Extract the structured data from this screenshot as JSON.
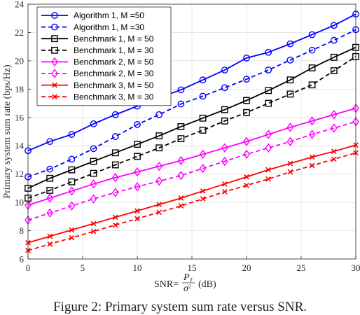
{
  "chart_data": {
    "type": "line",
    "xlabel": "SNR= P_T / σ² (dB)",
    "xlabel_parts": {
      "prefix": "SNR=",
      "numerator": "P",
      "numerator_sub": "T",
      "denominator": "σ",
      "denominator_sup": "2",
      "suffix": "(dB)"
    },
    "ylabel": "Primary system sum rate (bps/Hz)",
    "xlim": [
      0,
      30
    ],
    "ylim": [
      6,
      24
    ],
    "xticks": [
      0,
      5,
      10,
      15,
      20,
      25,
      30
    ],
    "yticks": [
      6,
      8,
      10,
      12,
      14,
      16,
      18,
      20,
      22,
      24
    ],
    "grid": true,
    "legend_position": "top-left",
    "x": [
      0,
      2,
      4,
      6,
      8,
      10,
      12,
      14,
      16,
      18,
      20,
      22,
      24,
      26,
      28,
      30
    ],
    "series": [
      {
        "name": "Algorithm 1, M =50",
        "color": "#0000ff",
        "dash": "solid",
        "marker": "circle",
        "values": [
          13.65,
          14.3,
          14.8,
          15.55,
          16.2,
          16.8,
          17.4,
          17.95,
          18.65,
          19.35,
          20.2,
          20.6,
          21.2,
          21.85,
          22.5,
          23.3
        ]
      },
      {
        "name": "Algorithm 1, M =30",
        "color": "#0000ff",
        "dash": "dashed",
        "marker": "circle",
        "values": [
          11.8,
          12.35,
          13.05,
          13.8,
          14.65,
          15.5,
          16.2,
          16.95,
          17.5,
          18.1,
          18.7,
          19.35,
          20.05,
          20.75,
          21.45,
          22.2
        ]
      },
      {
        "name": "Benchmark 1, M = 50",
        "color": "#000000",
        "dash": "solid",
        "marker": "square",
        "values": [
          11.0,
          11.7,
          12.3,
          12.9,
          13.5,
          14.1,
          14.7,
          15.35,
          15.95,
          16.55,
          17.2,
          17.9,
          18.65,
          19.5,
          20.25,
          20.95
        ]
      },
      {
        "name": "Benchmark 1, M = 30",
        "color": "#000000",
        "dash": "dashed",
        "marker": "square",
        "values": [
          10.3,
          10.85,
          11.45,
          12.05,
          12.65,
          13.25,
          13.85,
          14.5,
          15.1,
          15.75,
          16.35,
          17.0,
          17.65,
          18.3,
          19.3,
          20.3
        ]
      },
      {
        "name": "Benchmark 2, M = 50",
        "color": "#ff00ff",
        "dash": "solid",
        "marker": "diamond",
        "values": [
          9.8,
          10.3,
          10.8,
          11.3,
          11.75,
          12.15,
          12.55,
          12.95,
          13.4,
          13.85,
          14.3,
          14.8,
          15.3,
          15.75,
          16.2,
          16.65
        ]
      },
      {
        "name": "Benchmark 2, M = 30",
        "color": "#ff00ff",
        "dash": "dashed",
        "marker": "diamond",
        "values": [
          8.75,
          9.25,
          9.75,
          10.25,
          10.7,
          11.1,
          11.5,
          11.9,
          12.4,
          12.9,
          13.4,
          13.85,
          14.3,
          14.8,
          15.25,
          15.7
        ]
      },
      {
        "name": "Benchmark 3, M = 50",
        "color": "#ff0000",
        "dash": "solid",
        "marker": "x",
        "values": [
          7.15,
          7.6,
          8.05,
          8.5,
          8.95,
          9.4,
          9.85,
          10.3,
          10.8,
          11.3,
          11.8,
          12.3,
          12.75,
          13.2,
          13.6,
          14.05
        ]
      },
      {
        "name": "Benchmark 3, M = 30",
        "color": "#ff0000",
        "dash": "dashed",
        "marker": "x",
        "values": [
          6.6,
          7.05,
          7.5,
          7.95,
          8.4,
          8.85,
          9.3,
          9.75,
          10.25,
          10.75,
          11.2,
          11.65,
          12.15,
          12.6,
          13.05,
          13.5
        ]
      }
    ]
  },
  "caption": "Figure 2: Primary system sum rate versus SNR."
}
